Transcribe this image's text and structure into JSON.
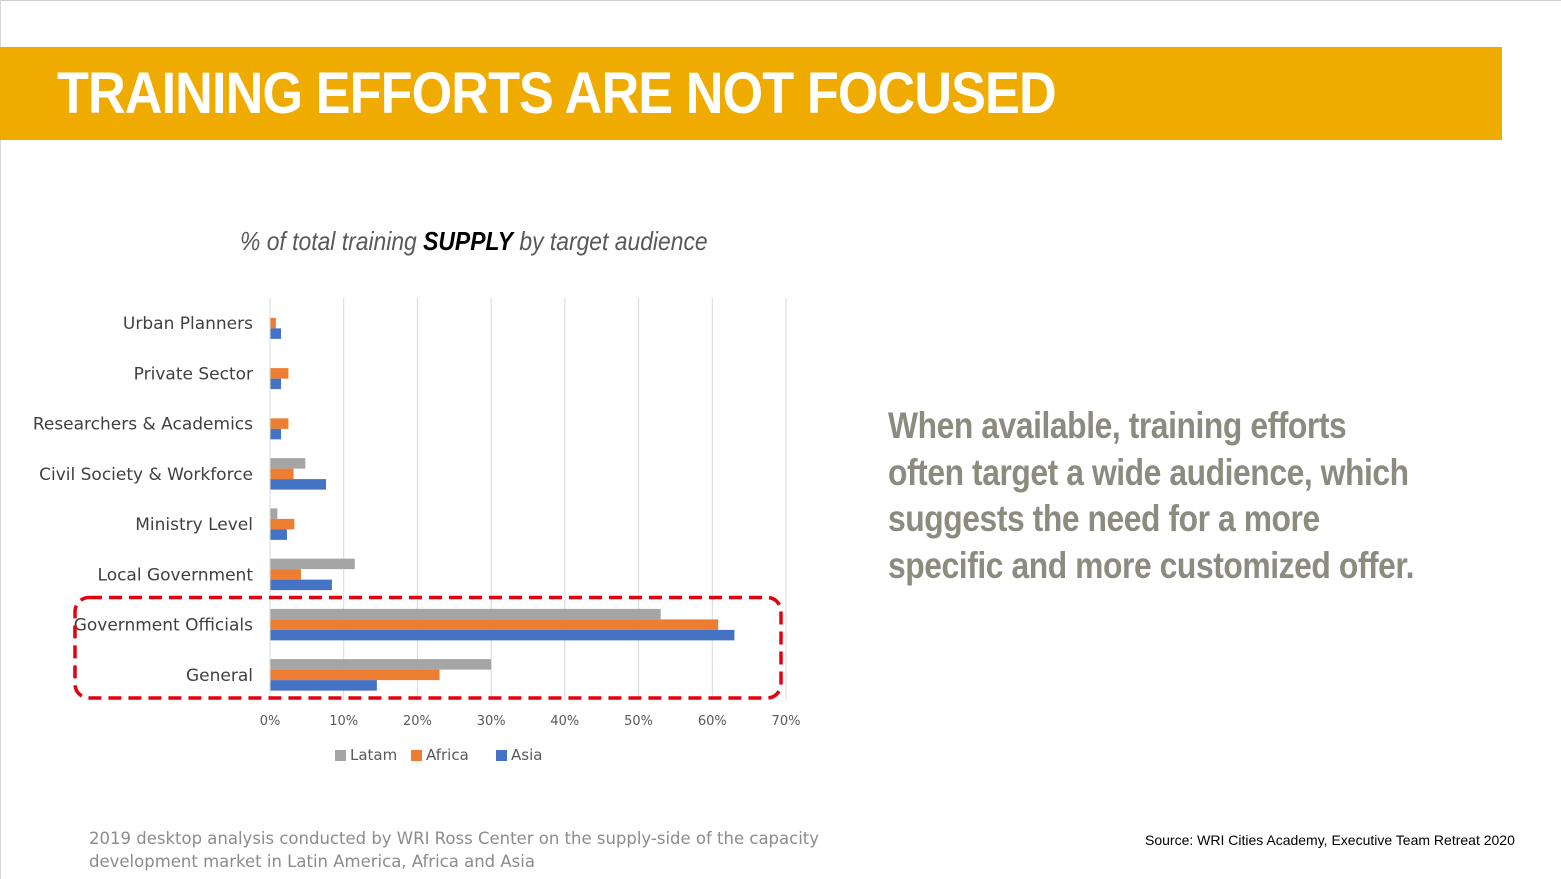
{
  "slide": {
    "title": "TRAINING EFFORTS ARE NOT FOCUSED",
    "side_text": "When available, training efforts often target a wide audience, which suggests the need for a more specific and more customized offer.",
    "footnote": "2019 desktop analysis conducted by WRI Ross Center on the supply-side of the capacity development market in Latin America, Africa and Asia",
    "source": "Source: WRI Cities Academy, Executive Team Retreat 2020"
  },
  "colors": {
    "title_bar": "#f0ab00",
    "latam": "#a5a5a5",
    "africa": "#ed7d31",
    "asia": "#4472c4",
    "highlight": "#e3000f",
    "side_text": "#8c8b80"
  },
  "chart_data": {
    "type": "bar",
    "orientation": "horizontal",
    "title_parts": [
      "% of total training ",
      "SUPPLY",
      " by target audience"
    ],
    "categories": [
      "Urban Planners",
      "Private Sector",
      "Researchers & Academics",
      "Civil Society & Workforce",
      "Ministry Level",
      "Local Government",
      "Government Officials",
      "General"
    ],
    "series": [
      {
        "name": "Latam",
        "color": "#a5a5a5",
        "values": [
          0,
          0,
          0,
          4.8,
          1.0,
          11.5,
          53.0,
          30.0
        ]
      },
      {
        "name": "Africa",
        "color": "#ed7d31",
        "values": [
          0.8,
          2.5,
          2.5,
          3.2,
          3.3,
          4.2,
          60.8,
          23.0
        ]
      },
      {
        "name": "Asia",
        "color": "#4472c4",
        "values": [
          1.5,
          1.5,
          1.5,
          7.6,
          2.3,
          8.4,
          63.0,
          14.5
        ]
      }
    ],
    "xlim": [
      0,
      70
    ],
    "x_ticks": [
      "0%",
      "10%",
      "20%",
      "30%",
      "40%",
      "50%",
      "60%",
      "70%"
    ],
    "grid": true,
    "legend_position": "bottom",
    "highlighted_categories": [
      "Government Officials",
      "General"
    ],
    "xlabel": "",
    "ylabel": ""
  }
}
